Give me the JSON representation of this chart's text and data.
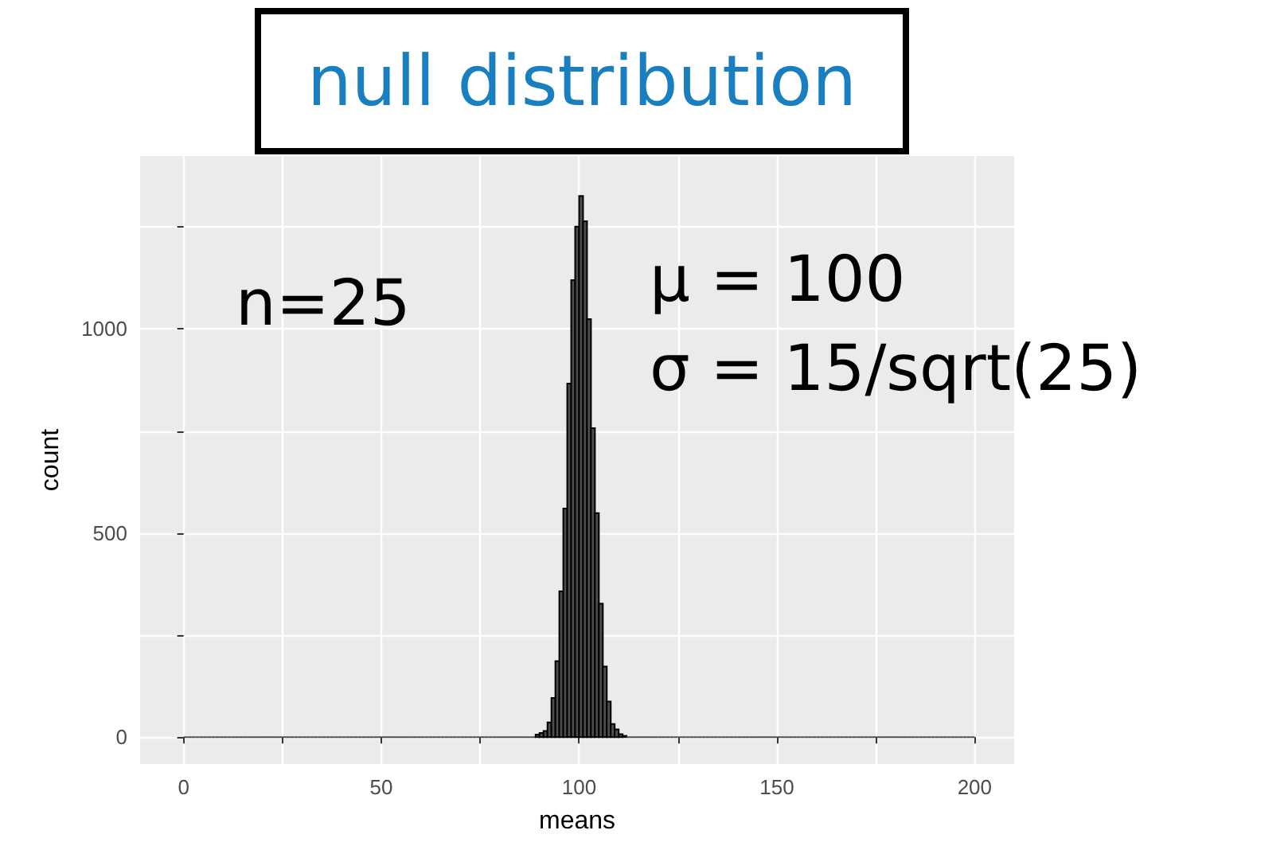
{
  "chart_data": {
    "type": "histogram",
    "title": "null distribution",
    "xlabel": "means",
    "ylabel": "count",
    "annotations": [
      "n=25",
      "μ = 100",
      "σ = 15/sqrt(25)"
    ],
    "bins": [
      0,
      1,
      2,
      3,
      4,
      5,
      6,
      7,
      8,
      9,
      10,
      11,
      12,
      13,
      14,
      15,
      16,
      17,
      18,
      19,
      20,
      21,
      22,
      23,
      24,
      25,
      26,
      27,
      28,
      29,
      30,
      31,
      32,
      33,
      34,
      35,
      36,
      37,
      38,
      39,
      40,
      41,
      42,
      43,
      44,
      45,
      46,
      47,
      48,
      49,
      50,
      51,
      52,
      53,
      54,
      55,
      56,
      57,
      58,
      59,
      60,
      61,
      62,
      63,
      64,
      65,
      66,
      67,
      68,
      69,
      70,
      71,
      72,
      73,
      74,
      75,
      76,
      77,
      78,
      79,
      80,
      81,
      82,
      83,
      84,
      85,
      86,
      87,
      88,
      89,
      90,
      91,
      92,
      93,
      94,
      95,
      96,
      97,
      98,
      99,
      100,
      101,
      102,
      103,
      104,
      105,
      106,
      107,
      108,
      109,
      110,
      111,
      112,
      113,
      114,
      115,
      116,
      117,
      118,
      119,
      120,
      121,
      122,
      123,
      124,
      125,
      126,
      127,
      128,
      129,
      130,
      131,
      132,
      133,
      134,
      135,
      136,
      137,
      138,
      139,
      140,
      141,
      142,
      143,
      144,
      145,
      146,
      147,
      148,
      149,
      150,
      151,
      152,
      153,
      154,
      155,
      156,
      157,
      158,
      159,
      160,
      161,
      162,
      163,
      164,
      165,
      166,
      167,
      168,
      169,
      170,
      171,
      172,
      173,
      174,
      175,
      176,
      177,
      178,
      179,
      180,
      181,
      182,
      183,
      184,
      185,
      186,
      187,
      188,
      189,
      190,
      191,
      192,
      193,
      194,
      195,
      196,
      197,
      198,
      199,
      200
    ],
    "values": [
      0,
      0,
      0,
      0,
      0,
      0,
      0,
      0,
      0,
      0,
      0,
      0,
      0,
      0,
      0,
      0,
      0,
      0,
      0,
      0,
      0,
      0,
      0,
      0,
      0,
      0,
      0,
      0,
      0,
      0,
      0,
      0,
      0,
      0,
      0,
      0,
      0,
      0,
      0,
      0,
      0,
      0,
      0,
      0,
      0,
      0,
      0,
      0,
      0,
      0,
      0,
      0,
      0,
      0,
      0,
      0,
      0,
      0,
      0,
      0,
      0,
      0,
      0,
      0,
      0,
      0,
      0,
      0,
      0,
      0,
      0,
      0,
      0,
      0,
      0,
      0,
      0,
      0,
      0,
      0,
      0,
      0,
      0,
      0,
      0,
      0,
      0,
      0,
      0,
      6,
      10,
      15,
      36,
      96,
      186,
      357,
      560,
      866,
      1120,
      1251,
      1326,
      1264,
      1024,
      757,
      549,
      327,
      173,
      87,
      32,
      19,
      7,
      3,
      0,
      0,
      0,
      0,
      0,
      0,
      0,
      0,
      0,
      0,
      0,
      0,
      0,
      0,
      0,
      0,
      0,
      0,
      0,
      0,
      0,
      0,
      0,
      0,
      0,
      0,
      0,
      0,
      0,
      0,
      0,
      0,
      0,
      0,
      0,
      0,
      0,
      0,
      0,
      0,
      0,
      0,
      0,
      0,
      0,
      0,
      0,
      0,
      0,
      0,
      0,
      0,
      0,
      0,
      0,
      0,
      0,
      0,
      0,
      0,
      0,
      0,
      0,
      0,
      0,
      0,
      0,
      0,
      0,
      0,
      0,
      0,
      0,
      0,
      0,
      0,
      0,
      0,
      0,
      0,
      0,
      0,
      0,
      0,
      0,
      0,
      0,
      0
    ],
    "color": "#4d4d4d",
    "xlim": [
      -11,
      210
    ],
    "xticks": [
      0,
      {
        "value": 25,
        "label": null
      },
      50,
      {
        "value": 75,
        "label": null
      },
      100,
      {
        "value": 125,
        "label": null
      },
      150,
      {
        "value": 175,
        "label": null
      },
      200
    ],
    "ylim": [
      -66,
      1424
    ],
    "yticks": [
      0,
      {
        "value": 250,
        "label": null
      },
      500,
      {
        "value": 750,
        "label": null
      },
      1000,
      {
        "value": 1250,
        "label": null
      }
    ],
    "grid": true
  }
}
